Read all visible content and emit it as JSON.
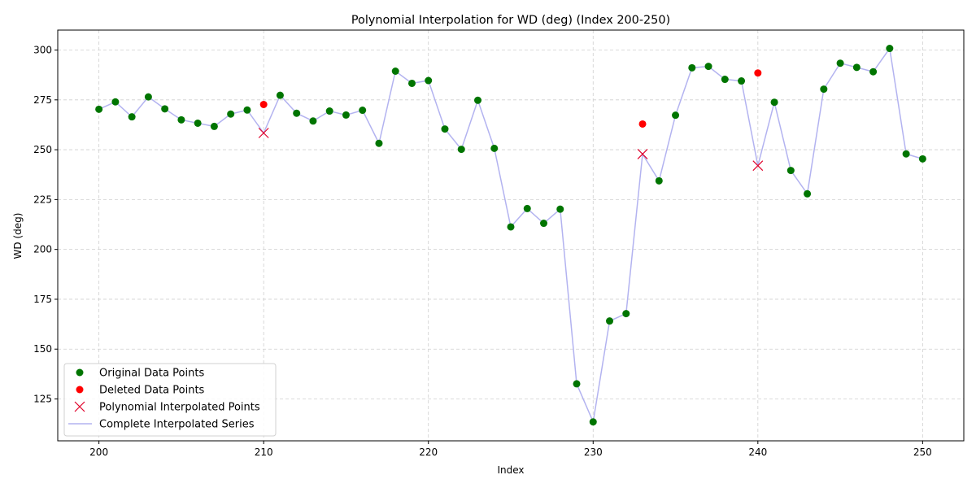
{
  "chart_data": {
    "type": "scatter",
    "title": "Polynomial Interpolation for WD (deg) (Index 200-250)",
    "xlabel": "Index",
    "ylabel": "WD (deg)",
    "xlim": [
      197.5,
      252.5
    ],
    "ylim": [
      104,
      310
    ],
    "xticks": [
      200,
      210,
      220,
      230,
      240,
      250
    ],
    "yticks": [
      125,
      150,
      175,
      200,
      225,
      250,
      275,
      300
    ],
    "grid": true,
    "legend_position": "lower-left",
    "colors": {
      "original": "#007500",
      "deleted": "#ff0000",
      "interpolated": "#e0002a",
      "series_line": "#b3b3f0"
    },
    "series": [
      {
        "name": "Original Data Points",
        "marker": "circle",
        "x": [
          200,
          201,
          202,
          203,
          204,
          205,
          206,
          207,
          208,
          209,
          211,
          212,
          213,
          214,
          215,
          216,
          217,
          218,
          219,
          220,
          221,
          222,
          223,
          224,
          225,
          226,
          227,
          228,
          229,
          230,
          231,
          232,
          234,
          235,
          236,
          237,
          238,
          239,
          241,
          242,
          243,
          244,
          245,
          246,
          247,
          248,
          249,
          250
        ],
        "y": [
          270.3,
          274,
          266.5,
          276.5,
          270.5,
          265,
          263.3,
          261.7,
          267.9,
          269.9,
          277.3,
          268.3,
          264.4,
          269.4,
          267.4,
          269.8,
          253.2,
          289.4,
          283.3,
          284.7,
          260.4,
          250.2,
          274.8,
          250.7,
          211.3,
          220.5,
          213.1,
          220.2,
          132.6,
          113.5,
          164.1,
          167.8,
          234.4,
          267.3,
          291.1,
          291.8,
          285.3,
          284.5,
          273.8,
          239.6,
          227.9,
          280.4,
          293.4,
          291.3,
          289.1,
          300.8,
          247.9,
          245.4
        ]
      },
      {
        "name": "Deleted Data Points",
        "marker": "circle",
        "x": [
          210,
          233,
          240
        ],
        "y": [
          272.7,
          262.9,
          288.5
        ]
      },
      {
        "name": "Polynomial Interpolated Points",
        "marker": "x",
        "x": [
          210,
          233,
          240
        ],
        "y": [
          258.4,
          247.8,
          242
        ]
      },
      {
        "name": "Complete Interpolated Series",
        "marker": "line",
        "x": [
          200,
          201,
          202,
          203,
          204,
          205,
          206,
          207,
          208,
          209,
          210,
          211,
          212,
          213,
          214,
          215,
          216,
          217,
          218,
          219,
          220,
          221,
          222,
          223,
          224,
          225,
          226,
          227,
          228,
          229,
          230,
          231,
          232,
          233,
          234,
          235,
          236,
          237,
          238,
          239,
          240,
          241,
          242,
          243,
          244,
          245,
          246,
          247,
          248,
          249,
          250
        ],
        "y": [
          270.3,
          274,
          266.5,
          276.5,
          270.5,
          265,
          263.3,
          261.7,
          267.9,
          269.9,
          258.4,
          277.3,
          268.3,
          264.4,
          269.4,
          267.4,
          269.8,
          253.2,
          289.4,
          283.3,
          284.7,
          260.4,
          250.2,
          274.8,
          250.7,
          211.3,
          220.5,
          213.1,
          220.2,
          132.6,
          113.5,
          164.1,
          167.8,
          247.8,
          234.4,
          267.3,
          291.1,
          291.8,
          285.3,
          284.5,
          242,
          273.8,
          239.6,
          227.9,
          280.4,
          293.4,
          291.3,
          289.1,
          300.8,
          247.9,
          245.4
        ]
      }
    ]
  }
}
